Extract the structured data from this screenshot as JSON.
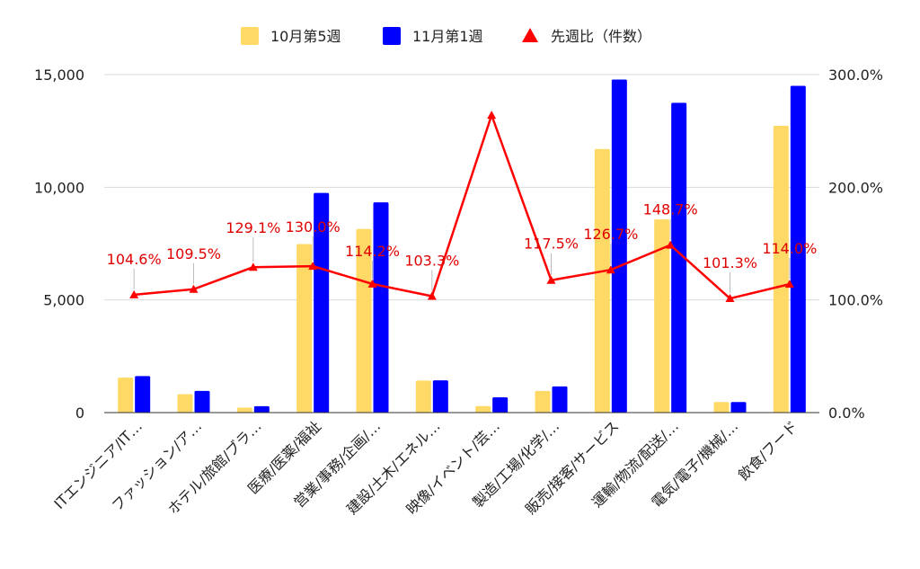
{
  "chart_data": {
    "type": "bar",
    "categories": [
      "ITエンジニア/IT…",
      "ファッション/ア…",
      "ホテル/旅館/ブラ…",
      "医療/医薬/福祉",
      "営業/事務/企画/…",
      "建設/土木/エネル…",
      "映像/イベント/芸…",
      "製造/工場/化学/…",
      "販売/接客/サービス",
      "運輸/物流/配送/…",
      "電気/電子/機械/…",
      "飲食/フード"
    ],
    "series": [
      {
        "name": "10月第5週",
        "type": "bar",
        "axis": "left",
        "color": "#ffd966",
        "values": [
          1550,
          820,
          220,
          7480,
          8150,
          1420,
          290,
          960,
          11700,
          8570,
          470,
          12730
        ]
      },
      {
        "name": "11月第1週",
        "type": "bar",
        "axis": "left",
        "color": "#0000ff",
        "values": [
          1620,
          960,
          285,
          9750,
          9330,
          1430,
          680,
          1160,
          14780,
          13750,
          470,
          14500
        ]
      },
      {
        "name": "先週比（件数）",
        "type": "line",
        "axis": "right",
        "color": "#ff0000",
        "marker": "triangle",
        "values": [
          104.6,
          109.5,
          129.1,
          130.0,
          114.2,
          103.3,
          264.0,
          117.5,
          126.7,
          148.7,
          101.3,
          114.0
        ],
        "labels": [
          "104.6%",
          "109.5%",
          "129.1%",
          "130.0%",
          "114.2%",
          "103.3%",
          "",
          "117.5%",
          "126.7%",
          "148.7%",
          "101.3%",
          "114.0%"
        ]
      }
    ],
    "y_left": {
      "min": 0,
      "max": 15000,
      "ticks": [
        0,
        5000,
        10000,
        15000
      ],
      "tick_labels": [
        "0",
        "5,000",
        "10,000",
        "15,000"
      ]
    },
    "y_right": {
      "min": 0,
      "max": 300,
      "ticks": [
        0,
        100,
        200,
        300
      ],
      "tick_labels": [
        "0.0%",
        "100.0%",
        "200.0%",
        "300.0%"
      ]
    },
    "grid": true,
    "legend_position": "top-center",
    "title": "",
    "xlabel": "",
    "ylabel": ""
  }
}
